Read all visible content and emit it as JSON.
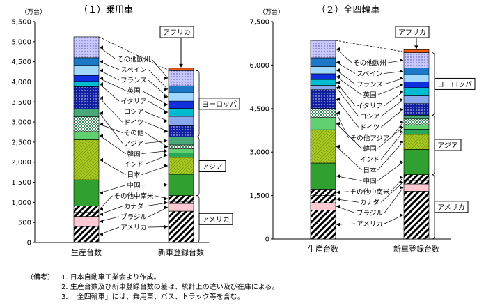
{
  "notes": {
    "prefix": "（備考）",
    "lines": [
      "1. 日本自動車工業会より作成。",
      "2. 生産台数及び新車登録台数の差は、統計上の違い及び在庫による。",
      "3. 「全四輪車」には、乗用車、バス、トラック等を含む。"
    ]
  },
  "region_labels": [
    "アフリカ",
    "ヨーロッパ",
    "アジア",
    "アメリカ"
  ],
  "colors": {
    "アメリカ": "#e8202a",
    "ブラジル": "#ffc8d2",
    "カナダ": "#a03018",
    "その他中南米": "#e020e0",
    "中国": "#30a030",
    "日本": "#a8c820",
    "インド": "#2aa85a",
    "韓国": "#60d070",
    "アジアその他": "#ffffff",
    "アジア_その他": "#4aa878",
    "ドイツ": "#1020a0",
    "ロシア": "#8aa8ee",
    "イタリア": "#00bcd0",
    "英国": "#1030e0",
    "フランス": "#a0d8ff",
    "スペイン": "#1e78c8",
    "その他欧州": "#c8c8ff",
    "アフリカ": "#f05a14"
  },
  "chart_data": [
    {
      "type": "bar",
      "stacked": true,
      "title": "（１）乗用車",
      "unit_label": "（万台）",
      "categories": [
        "生産台数",
        "新車登録台数"
      ],
      "ylim": [
        0,
        5500
      ],
      "yticks": [
        "0",
        "500",
        "1,000",
        "1,500",
        "2,000",
        "2,500",
        "3,000",
        "3,500",
        "4,000",
        "4,500",
        "5,000",
        "5,500"
      ],
      "series": [
        {
          "name": "アメリカ",
          "values": [
            400,
            780
          ]
        },
        {
          "name": "ブラジル",
          "values": [
            250,
            190
          ]
        },
        {
          "name": "カナダ",
          "values": [
            100,
            40
          ]
        },
        {
          "name": "その他中南米",
          "values": [
            160,
            160
          ]
        },
        {
          "name": "中国",
          "values": [
            650,
            530
          ]
        },
        {
          "name": "日本",
          "values": [
            1000,
            420
          ]
        },
        {
          "name": "インド",
          "values": [
            0,
            110
          ]
        },
        {
          "name": "韓国",
          "values": [
            200,
            100
          ]
        },
        {
          "name": "その他",
          "values": [
            370,
            100
          ]
        },
        {
          "name": "アジア",
          "values": [
            190,
            200
          ]
        },
        {
          "name": "ドイツ",
          "values": [
            560,
            280
          ]
        },
        {
          "name": "ロシア",
          "values": [
            0,
            230
          ]
        },
        {
          "name": "イタリア",
          "values": [
            130,
            200
          ]
        },
        {
          "name": "英国",
          "values": [
            150,
            180
          ]
        },
        {
          "name": "フランス",
          "values": [
            250,
            210
          ]
        },
        {
          "name": "スペイン",
          "values": [
            190,
            170
          ]
        },
        {
          "name": "その他欧州",
          "values": [
            520,
            380
          ]
        },
        {
          "name": "アフリカ",
          "values": [
            0,
            60
          ]
        }
      ],
      "callouts": [
        "その他欧州",
        "スペイン",
        "フランス",
        "英国",
        "イタリア",
        "ロシア",
        "ドイツ",
        "その他",
        "アジア",
        "韓国",
        "インド",
        "日本",
        "中国",
        "その他中南米",
        "カナダ",
        "ブラジル",
        "アメリカ"
      ]
    },
    {
      "type": "bar",
      "stacked": true,
      "title": "（２）全四輪車",
      "unit_label": "（万台）",
      "categories": [
        "生産台数",
        "新車登録台数"
      ],
      "ylim": [
        0,
        7500
      ],
      "yticks": [
        "0",
        "1,500",
        "3,000",
        "4,500",
        "6,000",
        "7,500"
      ],
      "series": [
        {
          "name": "アメリカ",
          "values": [
            1000,
            1650
          ]
        },
        {
          "name": "ブラジル",
          "values": [
            250,
            250
          ]
        },
        {
          "name": "カナダ",
          "values": [
            250,
            120
          ]
        },
        {
          "name": "その他中南米",
          "values": [
            220,
            200
          ]
        },
        {
          "name": "中国",
          "values": [
            900,
            870
          ]
        },
        {
          "name": "日本",
          "values": [
            1150,
            520
          ]
        },
        {
          "name": "インド",
          "values": [
            0,
            180
          ]
        },
        {
          "name": "韓国",
          "values": [
            420,
            150
          ]
        },
        {
          "name": "その他アジア",
          "values": [
            310,
            200
          ]
        },
        {
          "name": "アジア",
          "values": [
            0,
            130
          ]
        },
        {
          "name": "ドイツ",
          "values": [
            650,
            400
          ]
        },
        {
          "name": "ロシア",
          "values": [
            150,
            270
          ]
        },
        {
          "name": "イタリア",
          "values": [
            200,
            280
          ]
        },
        {
          "name": "英国",
          "values": [
            200,
            200
          ]
        },
        {
          "name": "フランス",
          "values": [
            250,
            250
          ]
        },
        {
          "name": "スペイン",
          "values": [
            300,
            230
          ]
        },
        {
          "name": "その他欧州",
          "values": [
            600,
            530
          ]
        },
        {
          "name": "アフリカ",
          "values": [
            0,
            100
          ]
        }
      ],
      "callouts": [
        "その他欧州",
        "スペイン",
        "フランス",
        "英国",
        "イタリア",
        "ロシア",
        "ドイツ",
        "その他アジア",
        "韓国",
        "インド",
        "日本",
        "中国",
        "その他中南米",
        "カナダ",
        "ブラジル",
        "アメリカ"
      ]
    }
  ]
}
